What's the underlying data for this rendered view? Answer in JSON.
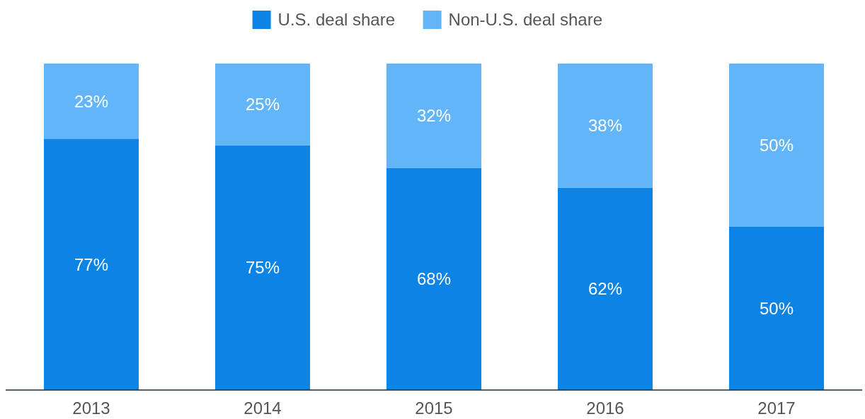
{
  "chart_data": {
    "type": "bar",
    "stacked": true,
    "categories": [
      "2013",
      "2014",
      "2015",
      "2016",
      "2017"
    ],
    "series": [
      {
        "name": "U.S. deal share",
        "color": "#0b84e5",
        "values": [
          77,
          75,
          68,
          62,
          50
        ],
        "value_labels": [
          "77%",
          "75%",
          "68%",
          "62%",
          "50%"
        ]
      },
      {
        "name": "Non-U.S. deal share",
        "color": "#62b5f8",
        "values": [
          23,
          25,
          32,
          38,
          50
        ],
        "value_labels": [
          "23%",
          "25%",
          "32%",
          "38%",
          "50%"
        ]
      }
    ],
    "ylim": [
      0,
      100
    ],
    "tick_labels": "x",
    "legend": "top"
  }
}
